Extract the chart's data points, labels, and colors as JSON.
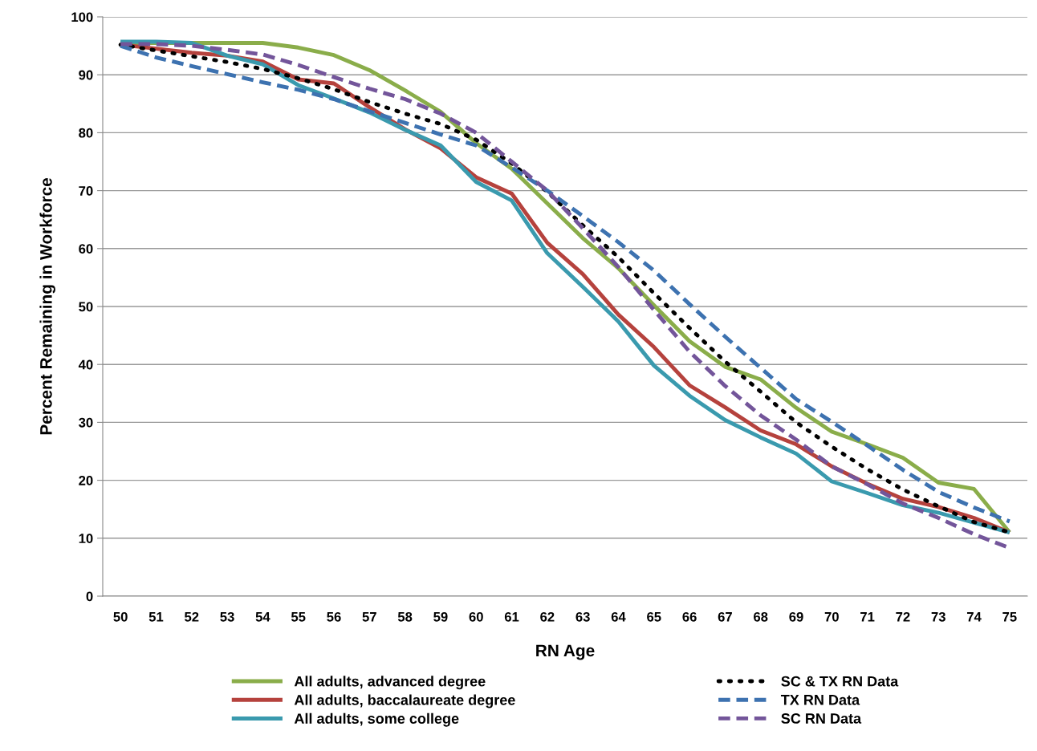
{
  "chart_data": {
    "type": "line",
    "xlabel": "RN Age",
    "ylabel": "Percent Remaining in Workforce",
    "categories": [
      "50",
      "51",
      "52",
      "53",
      "54",
      "55",
      "56",
      "57",
      "58",
      "59",
      "60",
      "61",
      "62",
      "63",
      "64",
      "65",
      "66",
      "67",
      "68",
      "69",
      "70",
      "71",
      "72",
      "73",
      "74",
      "75"
    ],
    "ylim": [
      0,
      100
    ],
    "yticks": [
      0,
      10,
      20,
      30,
      40,
      50,
      60,
      70,
      80,
      90,
      100
    ],
    "grid": "y",
    "legend": "bottom",
    "marker": "none",
    "series": [
      {
        "name": "All adults, advanced degree",
        "color": "#8aad4a",
        "line_style": "solid",
        "values": [
          95.5,
          95.5,
          95.5,
          95.5,
          95.5,
          94.7,
          93.4,
          90.8,
          87.3,
          83.6,
          78.2,
          73.8,
          67.8,
          61.8,
          56.6,
          50.2,
          44.0,
          39.6,
          37.4,
          32.5,
          28.4,
          26.2,
          23.9,
          19.6,
          18.5,
          11.0
        ]
      },
      {
        "name": "All adults, baccalaureate degree",
        "color": "#b5423d",
        "line_style": "solid",
        "values": [
          95.2,
          94.5,
          93.8,
          93.3,
          92.3,
          89.2,
          88.5,
          84.4,
          80.6,
          77.3,
          72.3,
          69.5,
          61.0,
          55.6,
          48.6,
          43.0,
          36.4,
          32.6,
          28.6,
          26.2,
          22.4,
          19.4,
          16.8,
          15.4,
          13.5,
          11.0
        ]
      },
      {
        "name": "All adults, some college",
        "color": "#3a9aae",
        "line_style": "solid",
        "values": [
          95.7,
          95.7,
          95.5,
          93.3,
          91.8,
          88.2,
          85.9,
          83.5,
          80.5,
          77.8,
          71.5,
          68.3,
          59.2,
          53.4,
          47.4,
          39.8,
          34.6,
          30.4,
          27.4,
          24.6,
          19.8,
          17.8,
          15.7,
          14.4,
          12.7,
          11.0
        ]
      },
      {
        "name": "SC & TX RN Data",
        "color": "#000000",
        "line_style": "dotted",
        "values": [
          95.2,
          94.2,
          93.2,
          92.2,
          91.0,
          89.4,
          87.5,
          85.3,
          83.3,
          81.5,
          78.8,
          74.7,
          69.8,
          64.0,
          58.5,
          52.3,
          46.3,
          40.5,
          35.3,
          30.0,
          25.8,
          21.9,
          18.4,
          15.5,
          12.8,
          11.0
        ]
      },
      {
        "name": "TX RN Data",
        "color": "#3d72b0",
        "line_style": "dashed",
        "values": [
          95.0,
          93.0,
          91.5,
          90.1,
          88.7,
          87.4,
          85.8,
          83.7,
          81.7,
          79.7,
          77.8,
          74.0,
          70.0,
          65.6,
          61.1,
          56.2,
          50.4,
          44.8,
          39.4,
          34.0,
          30.1,
          26.0,
          21.8,
          18.0,
          15.3,
          12.9
        ]
      },
      {
        "name": "SC RN Data",
        "color": "#73559a",
        "line_style": "dashed",
        "values": [
          95.3,
          95.3,
          95.0,
          94.3,
          93.5,
          91.7,
          89.6,
          87.6,
          85.8,
          83.3,
          80.0,
          75.0,
          70.0,
          63.5,
          56.8,
          49.4,
          42.2,
          36.3,
          31.2,
          27.0,
          22.4,
          19.3,
          16.0,
          13.5,
          10.7,
          8.3
        ]
      }
    ]
  }
}
